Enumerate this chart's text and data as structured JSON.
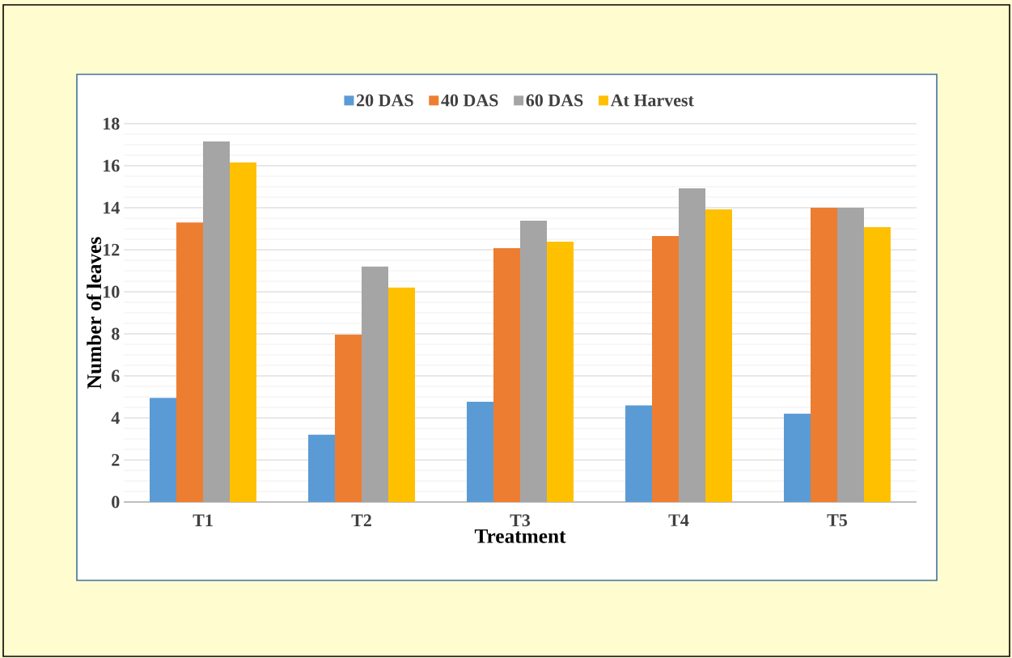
{
  "chart_data": {
    "type": "bar",
    "xlabel": "Treatment",
    "ylabel": "Number of leaves",
    "categories": [
      "T1",
      "T2",
      "T3",
      "T4",
      "T5"
    ],
    "series": [
      {
        "name": "20 DAS",
        "color": "#5b9bd5",
        "values": [
          4.95,
          3.2,
          4.77,
          4.6,
          4.2
        ]
      },
      {
        "name": "40 DAS",
        "color": "#ed7d31",
        "values": [
          13.3,
          7.96,
          12.08,
          12.65,
          14.0
        ]
      },
      {
        "name": "60 DAS",
        "color": "#a5a5a5",
        "values": [
          17.15,
          11.2,
          13.38,
          14.92,
          14.0
        ]
      },
      {
        "name": "At Harvest",
        "color": "#ffc000",
        "values": [
          16.15,
          10.2,
          12.38,
          13.92,
          13.08
        ]
      }
    ],
    "ylim": [
      0,
      18
    ],
    "yticks": [
      0,
      2,
      4,
      6,
      8,
      10,
      12,
      14,
      16,
      18
    ],
    "grid": "y",
    "legend": "top"
  }
}
